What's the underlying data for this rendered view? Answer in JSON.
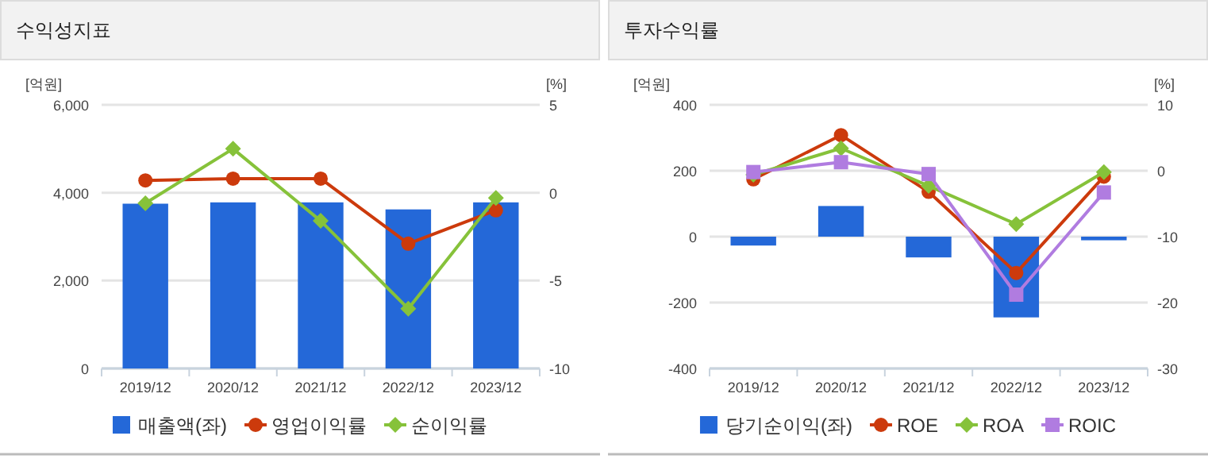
{
  "chart_data": [
    {
      "type": "bar",
      "title": "수익성지표",
      "ylabel": "[억원]",
      "y2label": "[%]",
      "categories": [
        "2019/12",
        "2020/12",
        "2021/12",
        "2022/12",
        "2023/12"
      ],
      "series": [
        {
          "name": "매출액(좌)",
          "color": "#2468d8",
          "values": [
            3750,
            3780,
            3780,
            3620,
            3780
          ]
        },
        {
          "name": "영업이익률",
          "type": "line",
          "axis": "y2",
          "marker": "circle",
          "color": "#cc3a0c",
          "values": [
            0.7,
            0.8,
            0.8,
            -2.9,
            -1.0
          ]
        },
        {
          "name": "순이익률",
          "type": "line",
          "axis": "y2",
          "marker": "diamond",
          "color": "#86c23a",
          "values": [
            -0.6,
            2.5,
            -1.6,
            -6.6,
            -0.3
          ]
        }
      ],
      "ylim": [
        0,
        6000
      ],
      "yticks": [
        0,
        {
          "value": 2000,
          "label": "2,000"
        },
        {
          "value": 4000,
          "label": "4,000"
        },
        {
          "value": 6000,
          "label": "6,000"
        }
      ],
      "y2lim": [
        -10,
        5
      ],
      "y2ticks": [
        -10,
        -5,
        0,
        5
      ],
      "grid": "y",
      "legend": "bottom"
    },
    {
      "type": "bar",
      "title": "투자수익률",
      "ylabel": "[억원]",
      "y2label": "[%]",
      "categories": [
        "2019/12",
        "2020/12",
        "2021/12",
        "2022/12",
        "2023/12"
      ],
      "series": [
        {
          "name": "당기순이익(좌)",
          "color": "#2468d8",
          "values": [
            -27,
            93,
            -63,
            -245,
            -11
          ]
        },
        {
          "name": "ROE",
          "type": "line",
          "axis": "y2",
          "marker": "circle",
          "color": "#cc3a0c",
          "values": [
            -1.3,
            5.4,
            -3.2,
            -15.5,
            -0.9
          ]
        },
        {
          "name": "ROA",
          "type": "line",
          "axis": "y2",
          "marker": "diamond",
          "color": "#86c23a",
          "values": [
            -0.6,
            3.4,
            -2.3,
            -8.1,
            -0.2
          ]
        },
        {
          "name": "ROIC",
          "type": "line",
          "axis": "y2",
          "marker": "square",
          "color": "#b07ce0",
          "values": [
            -0.2,
            1.3,
            -0.5,
            -18.8,
            -3.3
          ]
        }
      ],
      "ylim": [
        -400,
        400
      ],
      "yticks": [
        -400,
        -200,
        0,
        200,
        400
      ],
      "y2lim": [
        -30,
        10
      ],
      "y2ticks": [
        -30,
        -20,
        -10,
        0,
        10
      ],
      "grid": "y",
      "legend": "bottom"
    }
  ]
}
